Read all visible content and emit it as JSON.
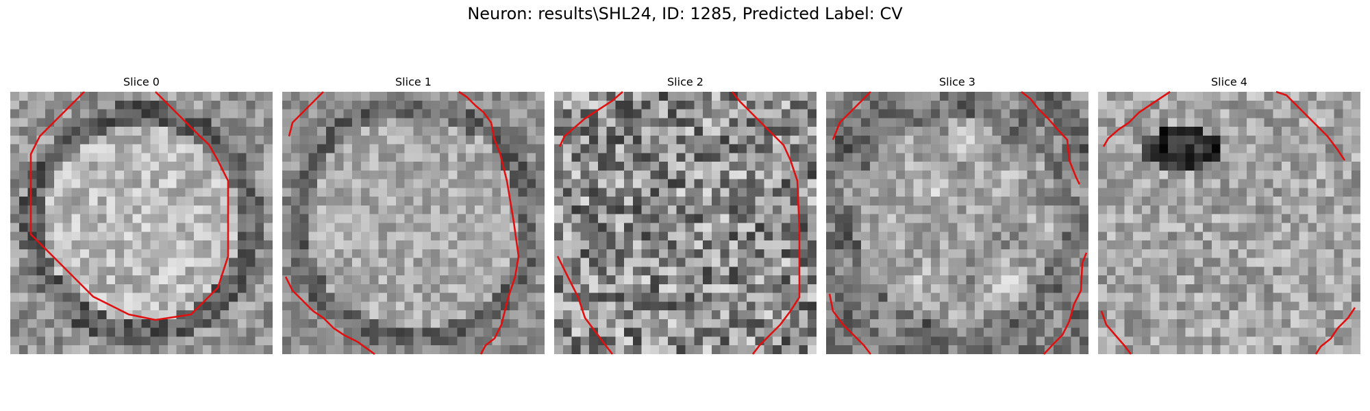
{
  "figure": {
    "title": "Neuron: results\\SHL24, ID: 1285, Predicted Label: CV"
  },
  "contour_color": "#e01010",
  "panels": [
    {
      "label": "Slice 0",
      "texture": "ring"
    },
    {
      "label": "Slice 1",
      "texture": "ring-soft"
    },
    {
      "label": "Slice 2",
      "texture": "noise"
    },
    {
      "label": "Slice 3",
      "texture": "mottled"
    },
    {
      "label": "Slice 4",
      "texture": "dark-spot"
    }
  ]
}
